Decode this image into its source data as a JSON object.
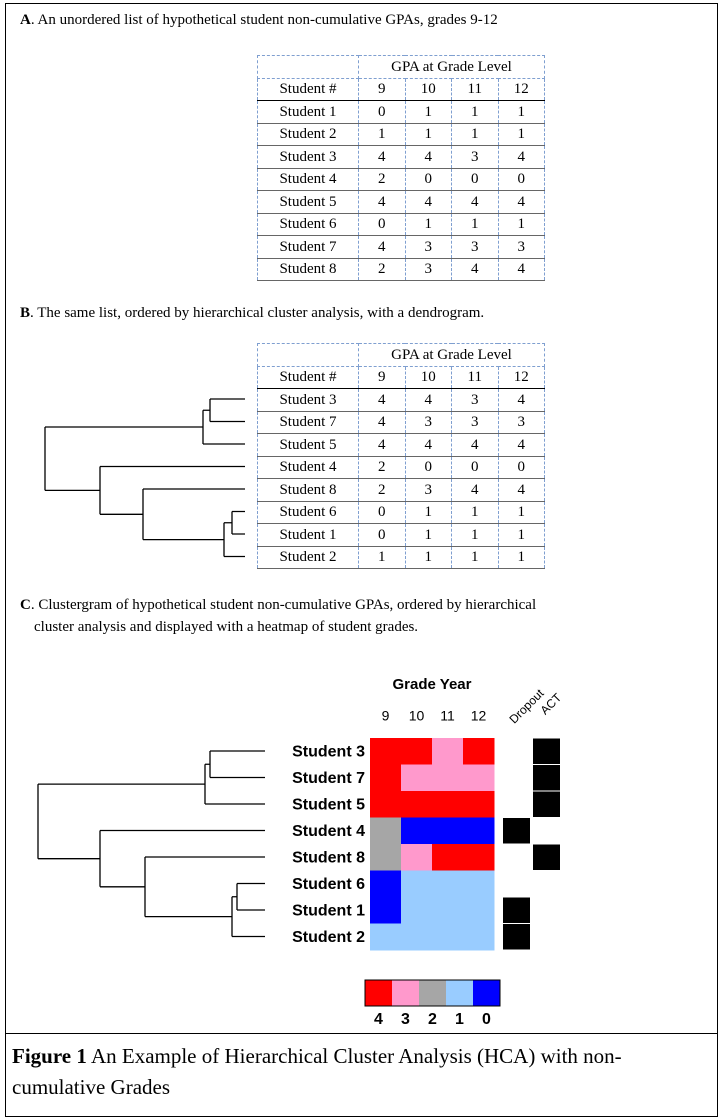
{
  "section_a": {
    "label": "A",
    "title": ". An unordered list of hypothetical student non-cumulative GPAs, grades 9-12",
    "table": {
      "header": "GPA at Grade Level",
      "columns": [
        "Student #",
        9,
        10,
        11,
        12
      ],
      "rows": [
        [
          "Student 1",
          0,
          1,
          1,
          1
        ],
        [
          "Student 2",
          1,
          1,
          1,
          1
        ],
        [
          "Student 3",
          4,
          4,
          3,
          4
        ],
        [
          "Student 4",
          2,
          0,
          0,
          0
        ],
        [
          "Student 5",
          4,
          4,
          4,
          4
        ],
        [
          "Student 6",
          0,
          1,
          1,
          1
        ],
        [
          "Student 7",
          4,
          3,
          3,
          3
        ],
        [
          "Student 8",
          2,
          3,
          4,
          4
        ]
      ]
    }
  },
  "section_b": {
    "label": "B",
    "title": ". The same list, ordered by hierarchical cluster analysis, with a dendrogram.",
    "table": {
      "header": "GPA at Grade Level",
      "columns": [
        "Student #",
        9,
        10,
        11,
        12
      ],
      "rows": [
        [
          "Student 3",
          4,
          4,
          3,
          4
        ],
        [
          "Student 7",
          4,
          3,
          3,
          3
        ],
        [
          "Student 5",
          4,
          4,
          4,
          4
        ],
        [
          "Student 4",
          2,
          0,
          0,
          0
        ],
        [
          "Student 8",
          2,
          3,
          4,
          4
        ],
        [
          "Student 6",
          0,
          1,
          1,
          1
        ],
        [
          "Student 1",
          0,
          1,
          1,
          1
        ],
        [
          "Student 2",
          1,
          1,
          1,
          1
        ]
      ]
    }
  },
  "section_c": {
    "label": "C",
    "title_lines": [
      ". Clustergram of hypothetical student non-cumulative GPAs, ordered by hierarchical",
      "cluster analysis and displayed with a heatmap of student grades."
    ],
    "header": "Grade Year",
    "side_labels": [
      "Dropout",
      "ACT"
    ],
    "dropout": [
      false,
      false,
      false,
      true,
      false,
      false,
      true,
      true
    ],
    "act": [
      true,
      true,
      true,
      false,
      true,
      false,
      false,
      false
    ],
    "legend": {
      "values": [
        4,
        3,
        2,
        1,
        0
      ],
      "colors": [
        "#ff0000",
        "#ff99cc",
        "#a6a6a6",
        "#99ccff",
        "#0000ff"
      ]
    }
  },
  "caption": {
    "label": "Figure 1",
    "text": "An Example of Hierarchical Cluster Analysis (HCA) with non-cumulative Grades"
  }
}
